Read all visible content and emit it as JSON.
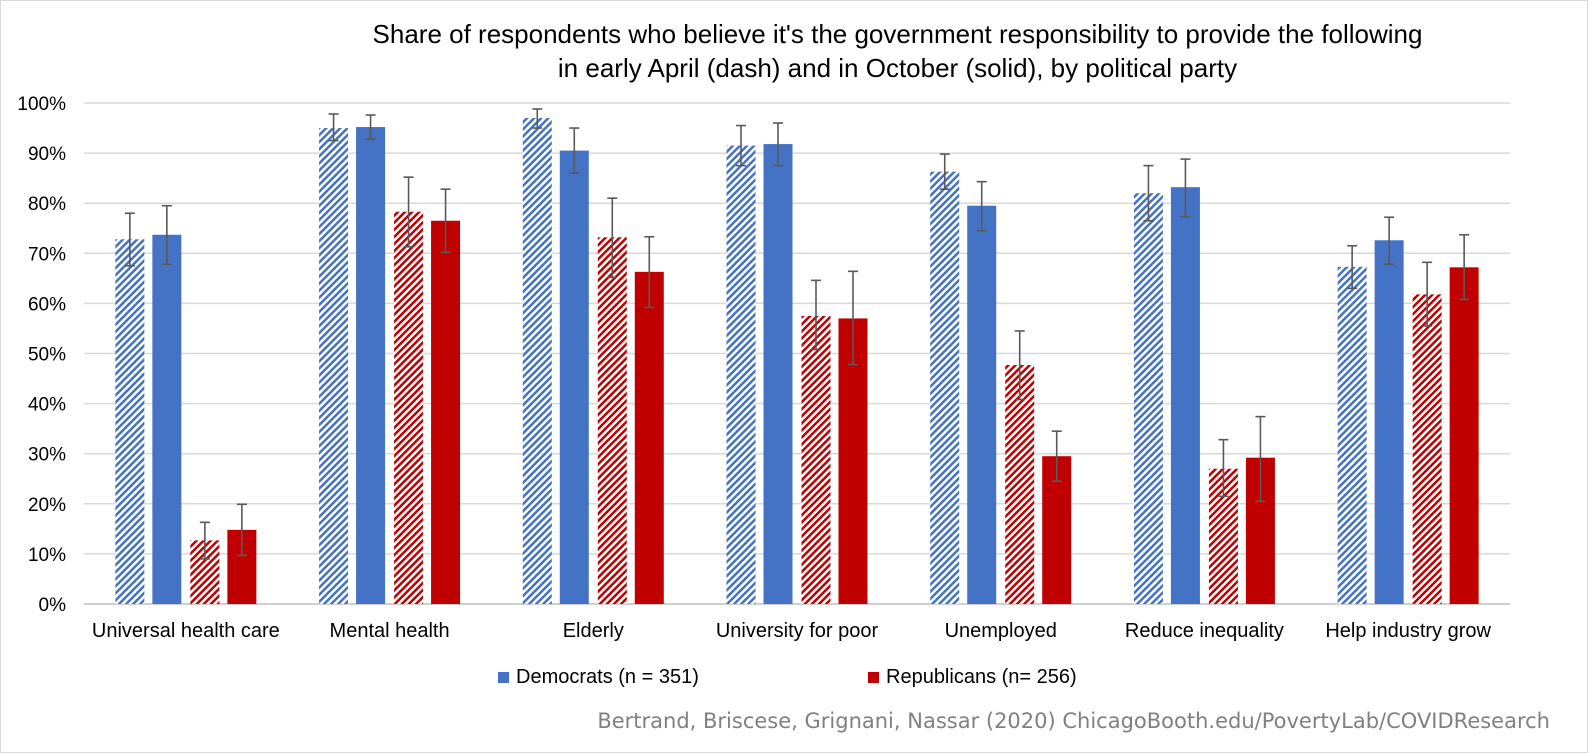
{
  "chart_data": {
    "type": "bar",
    "title": "Share of respondents who believe it's the government responsibility to provide the following",
    "subtitle": "in early April (dash) and in October (solid), by political party",
    "categories": [
      "Universal health care",
      "Mental health",
      "Elderly",
      "University for poor",
      "Unemployed",
      "Reduce inequality",
      "Help industry grow"
    ],
    "ylim": [
      0,
      100
    ],
    "yticks": [
      "0%",
      "10%",
      "20%",
      "30%",
      "40%",
      "50%",
      "60%",
      "70%",
      "80%",
      "90%",
      "100%"
    ],
    "grid": true,
    "legend_position": "bottom",
    "series": [
      {
        "party": "Democrats",
        "period": "early April",
        "pattern": "dash",
        "color": "#4472c4",
        "values": [
          72.8,
          95.0,
          97.0,
          91.5,
          86.3,
          82.0,
          67.3
        ],
        "error_low": [
          67.5,
          92.5,
          95.0,
          87.5,
          82.8,
          76.5,
          63.0
        ],
        "error_high": [
          78.0,
          97.8,
          98.8,
          95.5,
          89.8,
          87.5,
          71.5
        ]
      },
      {
        "party": "Democrats",
        "period": "October",
        "pattern": "solid",
        "color": "#4472c4",
        "values": [
          73.7,
          95.2,
          90.5,
          91.8,
          79.5,
          83.2,
          72.6
        ],
        "error_low": [
          67.8,
          92.8,
          86.0,
          87.5,
          74.5,
          77.3,
          67.8
        ],
        "error_high": [
          79.5,
          97.6,
          95.0,
          96.0,
          84.3,
          88.8,
          77.2
        ]
      },
      {
        "party": "Republicans",
        "period": "early April",
        "pattern": "dash",
        "color": "#c00000",
        "values": [
          12.7,
          78.3,
          73.2,
          57.5,
          47.7,
          27.0,
          61.8
        ],
        "error_low": [
          9.0,
          71.3,
          65.2,
          50.8,
          40.8,
          21.5,
          55.5
        ],
        "error_high": [
          16.3,
          85.2,
          81.0,
          64.6,
          54.5,
          32.8,
          68.2
        ]
      },
      {
        "party": "Republicans",
        "period": "October",
        "pattern": "solid",
        "color": "#c00000",
        "values": [
          14.8,
          76.5,
          66.3,
          57.0,
          29.5,
          29.2,
          67.2
        ],
        "error_low": [
          9.7,
          70.2,
          59.2,
          47.8,
          24.5,
          20.5,
          60.8
        ],
        "error_high": [
          19.9,
          82.8,
          73.3,
          66.4,
          34.5,
          37.4,
          73.7
        ]
      }
    ],
    "legend": [
      {
        "label": "Democrats (n = 351)",
        "color": "#4472c4"
      },
      {
        "label": "Republicans (n= 256)",
        "color": "#c00000"
      }
    ],
    "source": "Bertrand, Briscese, Grignani, Nassar (2020) ChicagoBooth.edu/PovertyLab/COVIDResearch"
  }
}
